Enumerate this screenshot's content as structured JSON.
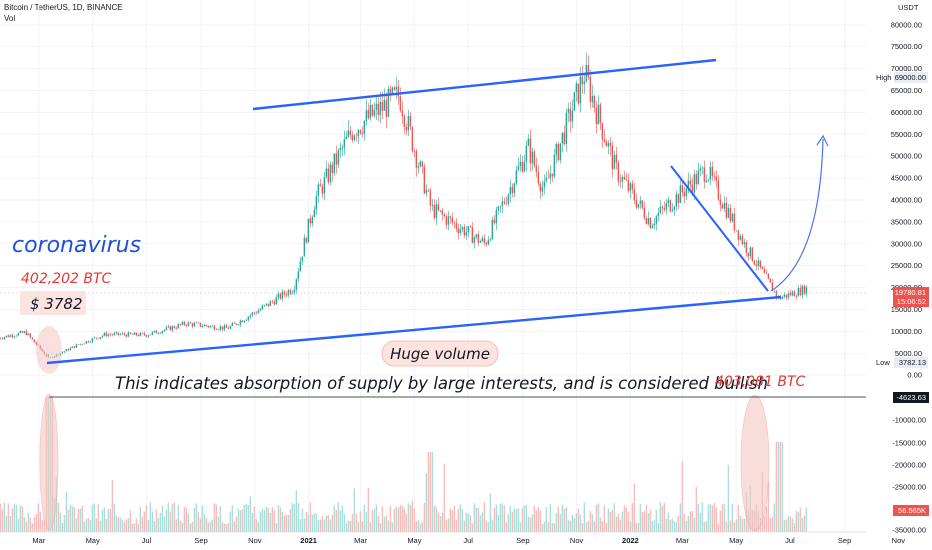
{
  "header": {
    "symbol_line": "Bitcoin / TetherUS, 1D, BINANCE",
    "vol_label": "Vol"
  },
  "price_axis": {
    "currency": "USDT",
    "ticks": [
      "80000.00",
      "75000.00",
      "70000.00",
      "65000.00",
      "60000.00",
      "55000.00",
      "50000.00",
      "45000.00",
      "40000.00",
      "35000.00",
      "30000.00",
      "25000.00",
      "20000.00",
      "15000.00",
      "10000.00",
      "5000.00",
      "0.00"
    ],
    "high_label": "High",
    "high_value": "69000.00",
    "low_label": "Low",
    "low_value": "3782.13",
    "current_price": "19780.81",
    "countdown": "15:06:52"
  },
  "volume_axis": {
    "ticks": [
      "-10000.00",
      "-15000.00",
      "-20000.00",
      "-25000.00",
      "-35000.00"
    ],
    "marker_value": "-4623.63",
    "vol_value": "56.565K"
  },
  "time_axis": {
    "ticks": [
      "Mar",
      "May",
      "Jul",
      "Sep",
      "Nov",
      "2021",
      "Mar",
      "May",
      "Jul",
      "Sep",
      "Nov",
      "2022",
      "Mar",
      "May",
      "Jul",
      "Sep",
      "Nov"
    ]
  },
  "annotations": {
    "coronavirus": "coronavirus",
    "btc_left": "402,202 BTC",
    "price_low": "$ 3782",
    "huge_volume": "Huge volume",
    "absorption": "This indicates absorption of supply by large interests, and is considered bullish",
    "btc_right": "403,081 BTC"
  },
  "colors": {
    "up": "#26a69a",
    "down": "#ef5350",
    "trendline": "#2962ff",
    "annotation_red": "#e53935",
    "annotation_blue": "#1e4fd8",
    "highlight": "#f4c7c3"
  },
  "chart_data": {
    "type": "candlestick",
    "x_range": [
      "2020-01",
      "2022-11"
    ],
    "y_range": [
      0,
      80000
    ],
    "y_scale": "log",
    "series": [
      {
        "name": "",
        "points": [
          {
            "x": "2020-01-15",
            "y": 8500
          },
          {
            "x": "2020-02-15",
            "y": 9800
          },
          {
            "x": "2020-03-12",
            "y": 3782
          },
          {
            "x": "2020-04-15",
            "y": 7000
          },
          {
            "x": "2020-05-15",
            "y": 9300
          },
          {
            "x": "2020-07-01",
            "y": 9200
          },
          {
            "x": "2020-08-15",
            "y": 11800
          },
          {
            "x": "2020-10-01",
            "y": 10700
          },
          {
            "x": "2020-11-15",
            "y": 16000
          },
          {
            "x": "2020-12-15",
            "y": 20000
          },
          {
            "x": "2021-01-08",
            "y": 40000
          },
          {
            "x": "2021-02-20",
            "y": 56000
          },
          {
            "x": "2021-04-14",
            "y": 64000
          },
          {
            "x": "2021-05-20",
            "y": 38000
          },
          {
            "x": "2021-07-20",
            "y": 30000
          },
          {
            "x": "2021-09-07",
            "y": 52000
          },
          {
            "x": "2021-09-25",
            "y": 42000
          },
          {
            "x": "2021-11-10",
            "y": 69000
          },
          {
            "x": "2021-12-15",
            "y": 47000
          },
          {
            "x": "2022-01-24",
            "y": 35000
          },
          {
            "x": "2022-03-28",
            "y": 47000
          },
          {
            "x": "2022-05-10",
            "y": 30000
          },
          {
            "x": "2022-06-18",
            "y": 17600
          },
          {
            "x": "2022-07-20",
            "y": 19780
          }
        ]
      }
    ]
  }
}
